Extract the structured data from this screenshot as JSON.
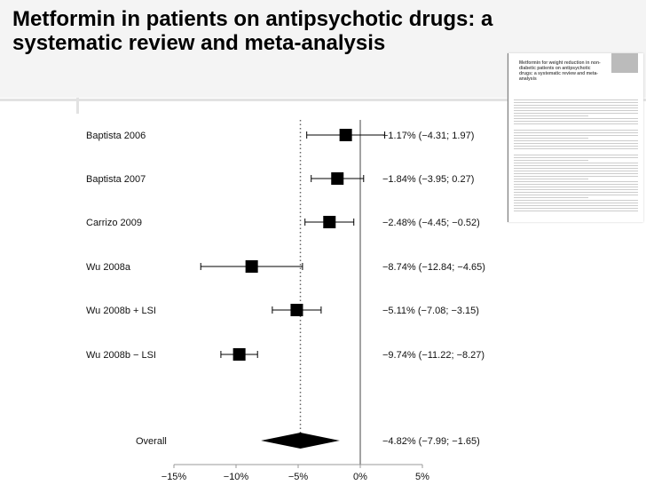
{
  "slide": {
    "title": "Metformin in patients on antipsychotic drugs: a systematic review and meta-analysis",
    "paper_thumbnail_title": "Metformin for weight reduction in non-diabetic patients on antipsychotic drugs: a systematic review and meta-analysis"
  },
  "chart_data": {
    "type": "forest",
    "xlim": [
      -15,
      5
    ],
    "xticks": [
      -15,
      -10,
      -5,
      0,
      5
    ],
    "xtick_labels": [
      "−15%",
      "−10%",
      "−5%",
      "0%",
      "5%"
    ],
    "reference_line": 0,
    "studies": [
      {
        "name": "Baptista 2006",
        "estimate": -1.17,
        "lower": -4.31,
        "upper": 1.97,
        "label": "−1.17% (−4.31; 1.97)"
      },
      {
        "name": "Baptista 2007",
        "estimate": -1.84,
        "lower": -3.95,
        "upper": 0.27,
        "label": "−1.84% (−3.95; 0.27)"
      },
      {
        "name": "Carrizo 2009",
        "estimate": -2.48,
        "lower": -4.45,
        "upper": -0.52,
        "label": "−2.48% (−4.45; −0.52)"
      },
      {
        "name": "Wu 2008a",
        "estimate": -8.74,
        "lower": -12.84,
        "upper": -4.65,
        "label": "−8.74% (−12.84; −4.65)"
      },
      {
        "name": "Wu 2008b + LSI",
        "estimate": -5.11,
        "lower": -7.08,
        "upper": -3.15,
        "label": "−5.11% (−7.08; −3.15)"
      },
      {
        "name": "Wu 2008b − LSI",
        "estimate": -9.74,
        "lower": -11.22,
        "upper": -8.27,
        "label": "−9.74% (−11.22; −8.27)"
      }
    ],
    "overall": {
      "name": "Overall",
      "estimate": -4.82,
      "lower": -7.99,
      "upper": -1.65,
      "label": "−4.82% (−7.99; −1.65)"
    }
  }
}
